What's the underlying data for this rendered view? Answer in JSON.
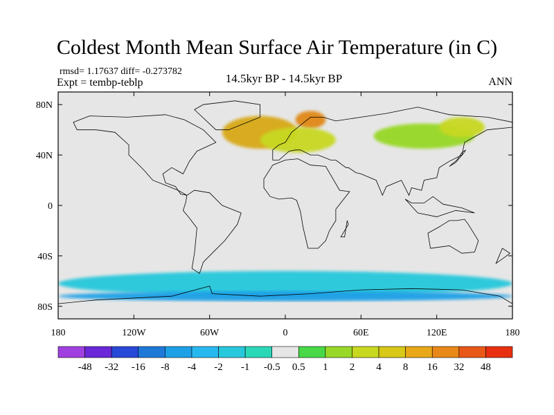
{
  "title": "Coldest Month Mean Surface Air Temperature (in C)",
  "stats": {
    "rmsd_label": "rmsd= 1.17637 diff= -0.273782"
  },
  "experiment": "Expt = tembp-teblp",
  "period": "14.5kyr BP - 14.5kyr BP",
  "season": "ANN",
  "map": {
    "projection": "cylindrical equidistant",
    "lon_range": [
      -180,
      180
    ],
    "lat_range": [
      -90,
      90
    ],
    "lat_ticks": [
      {
        "lat": 80,
        "label": "80N"
      },
      {
        "lat": 40,
        "label": "40N"
      },
      {
        "lat": 0,
        "label": "0"
      },
      {
        "lat": -40,
        "label": "40S"
      },
      {
        "lat": -80,
        "label": "80S"
      }
    ],
    "lon_ticks": [
      {
        "lon": -180,
        "label": "180"
      },
      {
        "lon": -120,
        "label": "120W"
      },
      {
        "lon": -60,
        "label": "60W"
      },
      {
        "lon": 0,
        "label": "0"
      },
      {
        "lon": 60,
        "label": "60E"
      },
      {
        "lon": 120,
        "label": "120E"
      },
      {
        "lon": 180,
        "label": "180"
      }
    ],
    "background_color": "#e6e6e6",
    "coast_color": "#000000"
  },
  "colorbar": {
    "colors": [
      "#a040e0",
      "#6a28d8",
      "#2848d8",
      "#1e78d8",
      "#1ea0e6",
      "#28b8f0",
      "#28c8dc",
      "#2ad8b8",
      "#e6e6e6",
      "#48d848",
      "#98d828",
      "#c8d820",
      "#d8c818",
      "#e8a818",
      "#e88818",
      "#e85818",
      "#e83010"
    ],
    "labels": [
      "-48",
      "-32",
      "-16",
      "-8",
      "-4",
      "-2",
      "-1",
      "-0.5",
      "0.5",
      "1",
      "2",
      "4",
      "8",
      "16",
      "32",
      "48"
    ]
  },
  "regions": [
    {
      "name": "north-atlantic-warming",
      "color": "#d8a818",
      "lon": -20,
      "lat": 58,
      "rlon": 30,
      "rlat": 13
    },
    {
      "name": "greenland-core",
      "color": "#e08818",
      "lon": 20,
      "lat": 68,
      "rlon": 12,
      "rlat": 7
    },
    {
      "name": "europe-warming",
      "color": "#c8d820",
      "lon": 10,
      "lat": 52,
      "rlon": 30,
      "rlat": 10
    },
    {
      "name": "siberia-warming",
      "color": "#98d828",
      "lon": 110,
      "lat": 55,
      "rlon": 40,
      "rlat": 10
    },
    {
      "name": "east-asia-warming",
      "color": "#c8d820",
      "lon": 140,
      "lat": 62,
      "rlon": 18,
      "rlat": 8
    },
    {
      "name": "southern-ocean-cooling",
      "color": "#28c8dc",
      "lon": 0,
      "lat": -62,
      "rlon": 180,
      "rlat": 10
    },
    {
      "name": "antarctic-coast-cooling",
      "color": "#1ea0e6",
      "lon": 0,
      "lat": -72,
      "rlon": 180,
      "rlat": 4
    }
  ]
}
